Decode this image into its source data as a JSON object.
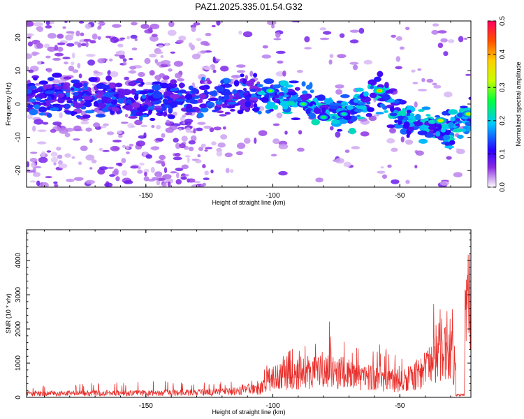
{
  "title": "PAZ1.2025.335.01.54.G32",
  "chart_data": [
    {
      "type": "heatmap",
      "name": "spectrogram",
      "xlabel": "Height of straight line (km)",
      "ylabel": "Frequency (Hz)",
      "xlim": [
        -197,
        -22
      ],
      "ylim": [
        -25,
        25
      ],
      "xticks": [
        -150,
        -100,
        -50
      ],
      "yticks": [
        20,
        10,
        0,
        -10,
        -20
      ],
      "colorbar": {
        "label": "Normalized spectral amplitude",
        "range": [
          0.0,
          0.5
        ],
        "ticks": [
          "0.0",
          "0.1",
          "0.2",
          "0.3",
          "0.4",
          "0.5"
        ]
      },
      "ridge": {
        "description": "dominant frequency ridge (Hz) vs height (km)",
        "x": [
          -197,
          -175,
          -150,
          -125,
          -110,
          -100,
          -90,
          -80,
          -70,
          -60,
          -50,
          -40,
          -30,
          -22
        ],
        "y": [
          3,
          2,
          1,
          2,
          3,
          2,
          1,
          -2,
          -3,
          4,
          -4,
          -7,
          -8,
          -3
        ]
      },
      "hotspots": [
        {
          "x": -58,
          "y": 4,
          "value": 0.4
        },
        {
          "x": -34,
          "y": -5,
          "value": 0.38
        },
        {
          "x": -101,
          "y": 4,
          "value": 0.3
        },
        {
          "x": -88,
          "y": 0,
          "value": 0.28
        },
        {
          "x": -80,
          "y": -4,
          "value": 0.26
        },
        {
          "x": -72,
          "y": -3,
          "value": 0.24
        },
        {
          "x": -23,
          "y": -3,
          "value": 0.35
        }
      ]
    },
    {
      "type": "line",
      "name": "snr",
      "xlabel": "Height of straight line (km)",
      "ylabel": "SNR (10 * v/v)",
      "xlim": [
        -197,
        -22
      ],
      "ylim": [
        0,
        4900
      ],
      "xticks": [
        -150,
        -100,
        -50
      ],
      "yticks": [
        0,
        1000,
        2000,
        3000,
        4000
      ],
      "envelope": {
        "x": [
          -197,
          -150,
          -120,
          -105,
          -100,
          -95,
          -85,
          -80,
          -75,
          -70,
          -60,
          -50,
          -45,
          -40,
          -35,
          -30,
          -27,
          -25,
          -23,
          -22
        ],
        "mean": [
          120,
          130,
          160,
          250,
          650,
          700,
          800,
          850,
          800,
          700,
          600,
          500,
          600,
          900,
          1400,
          1700,
          300,
          1000,
          3000,
          2500
        ],
        "peak": [
          330,
          480,
          450,
          500,
          1450,
          1400,
          1700,
          2250,
          2200,
          1700,
          1700,
          1200,
          1500,
          2400,
          3200,
          3550,
          800,
          2500,
          4900,
          3900
        ]
      }
    }
  ]
}
